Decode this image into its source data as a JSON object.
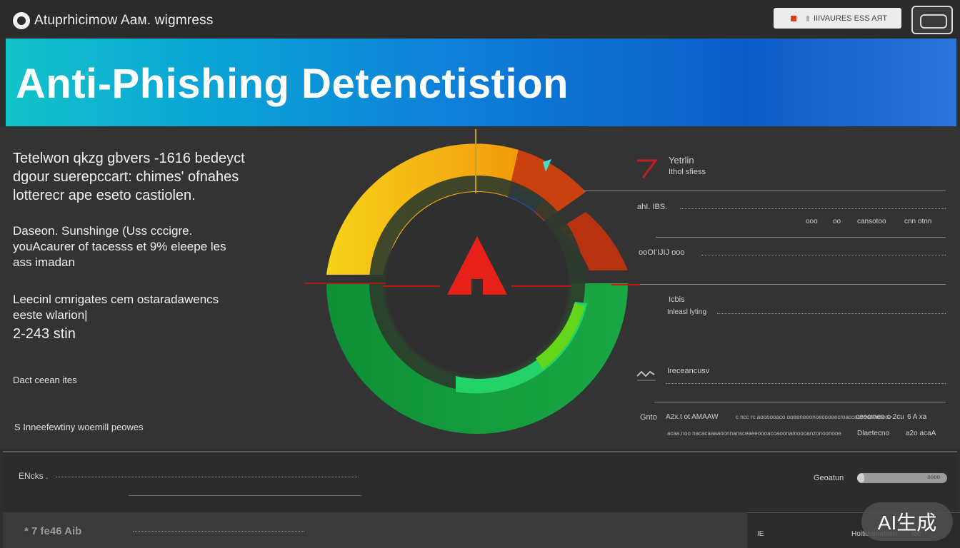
{
  "app": {
    "title": "Atuprhicimow Aам. wigmress",
    "status_text": "IIIVAURES ESS  AЯТ"
  },
  "banner": {
    "title": "Anti-Phishing Detenctistion"
  },
  "left": {
    "p1": [
      "Tetelwon qkzg gbvers -1616 bedeyct",
      "dgour suerepccart: chimes' ofnahes",
      "lotterecr ape eseto castiolen."
    ],
    "p2": [
      "Daseon. Sunshinge (Uss cccigre.",
      "youAcaurer of tacesss et 9% eleepe les",
      "ass imadan"
    ],
    "p3": [
      "Leecinl cmrigates cem ostaradawencs",
      "eeste wlarion|"
    ],
    "p3_value": "2-243 stin",
    "note1": "Dact ceean ites",
    "note2": "S Inneefewtiny woemill peowes"
  },
  "right": {
    "r1_title": "Yetrlin",
    "r1_sub": "Ithol sfiess",
    "r2_label": "ahI. IBS.",
    "r2_values": [
      "ooo",
      "oo",
      "cansotoo",
      "cnn otnn"
    ],
    "r3_label": "ooOI'IJIJ ooo",
    "r4_label": "Icbis",
    "r4_sub": "Inleasl lyting",
    "r5_label": "Ireceancusv",
    "r6_label": "Gnto",
    "r6_values": [
      "A2x.t ot AMAAW",
      "c ncc rc aoooooaco ooeeneeonoecooeecroaccacnooneoscco",
      "ceecmeo c-2cu",
      "6 A xa"
    ],
    "r7_values": [
      "acaa.noo nacacaaaaoonnansceaeeoooacoaoonamoooanzonoonooe",
      "Dlaetecno",
      "a2o acaA"
    ]
  },
  "bottom": {
    "label_left": "ENcks .",
    "label_right": "Geoatun",
    "progress": 0.08,
    "progress_text": "oooo",
    "b2_left": "* 7 fe46 Aib",
    "b2_mid_id": "IE",
    "b2_right": "Hoitidamatiom",
    "b2_right_tail": "toc",
    "watermark": "AI生成"
  },
  "colors": {
    "banner_start": "#12c3c9",
    "banner_end": "#0b5cc8",
    "gauge_yellow": "#f2b80f",
    "gauge_green": "#12a03c",
    "gauge_red_orange": "#c23a12",
    "alert_red": "#e8201a"
  }
}
